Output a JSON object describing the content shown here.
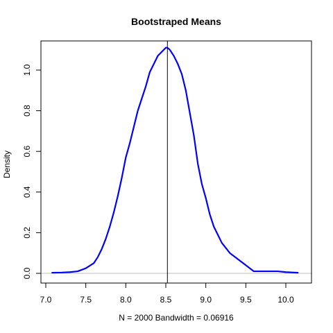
{
  "chart_data": {
    "type": "line",
    "title": "Bootstraped Means",
    "xlabel": "N = 2000   Bandwidth = 0.06916",
    "ylabel": "Density",
    "xlim": [
      7.0,
      10.2
    ],
    "ylim": [
      0.0,
      1.13
    ],
    "x_ticks": [
      7.0,
      7.5,
      8.0,
      8.5,
      9.0,
      9.5,
      10.0
    ],
    "x_tick_labels": [
      "7.0",
      "7.5",
      "8.0",
      "8.5",
      "9.0",
      "9.5",
      "10.0"
    ],
    "y_ticks": [
      0.0,
      0.2,
      0.4,
      0.6,
      0.8,
      1.0
    ],
    "y_tick_labels": [
      "0.0",
      "0.2",
      "0.4",
      "0.6",
      "0.8",
      "1.0"
    ],
    "baseline_y": 0.0,
    "baseline_color": "#bebebe",
    "vline_x": 8.52,
    "vline_color": "#000000",
    "grid": false,
    "series": [
      {
        "color": "#0000ff",
        "x": [
          7.08,
          7.2,
          7.3,
          7.4,
          7.5,
          7.6,
          7.65,
          7.7,
          7.75,
          7.8,
          7.85,
          7.9,
          7.95,
          8.0,
          8.05,
          8.1,
          8.15,
          8.2,
          8.25,
          8.3,
          8.35,
          8.4,
          8.45,
          8.5,
          8.52,
          8.55,
          8.6,
          8.65,
          8.7,
          8.75,
          8.8,
          8.85,
          8.9,
          8.95,
          9.0,
          9.05,
          9.1,
          9.15,
          9.2,
          9.3,
          9.4,
          9.5,
          9.6,
          9.7,
          9.8,
          9.9,
          10.0,
          10.15
        ],
        "y": [
          0.003,
          0.004,
          0.006,
          0.01,
          0.025,
          0.05,
          0.08,
          0.12,
          0.17,
          0.23,
          0.3,
          0.38,
          0.47,
          0.57,
          0.64,
          0.72,
          0.8,
          0.86,
          0.92,
          0.99,
          1.03,
          1.07,
          1.09,
          1.11,
          1.11,
          1.1,
          1.07,
          1.03,
          0.98,
          0.9,
          0.79,
          0.68,
          0.54,
          0.44,
          0.37,
          0.29,
          0.23,
          0.19,
          0.15,
          0.1,
          0.07,
          0.04,
          0.01,
          0.01,
          0.01,
          0.01,
          0.006,
          0.003
        ]
      }
    ]
  }
}
